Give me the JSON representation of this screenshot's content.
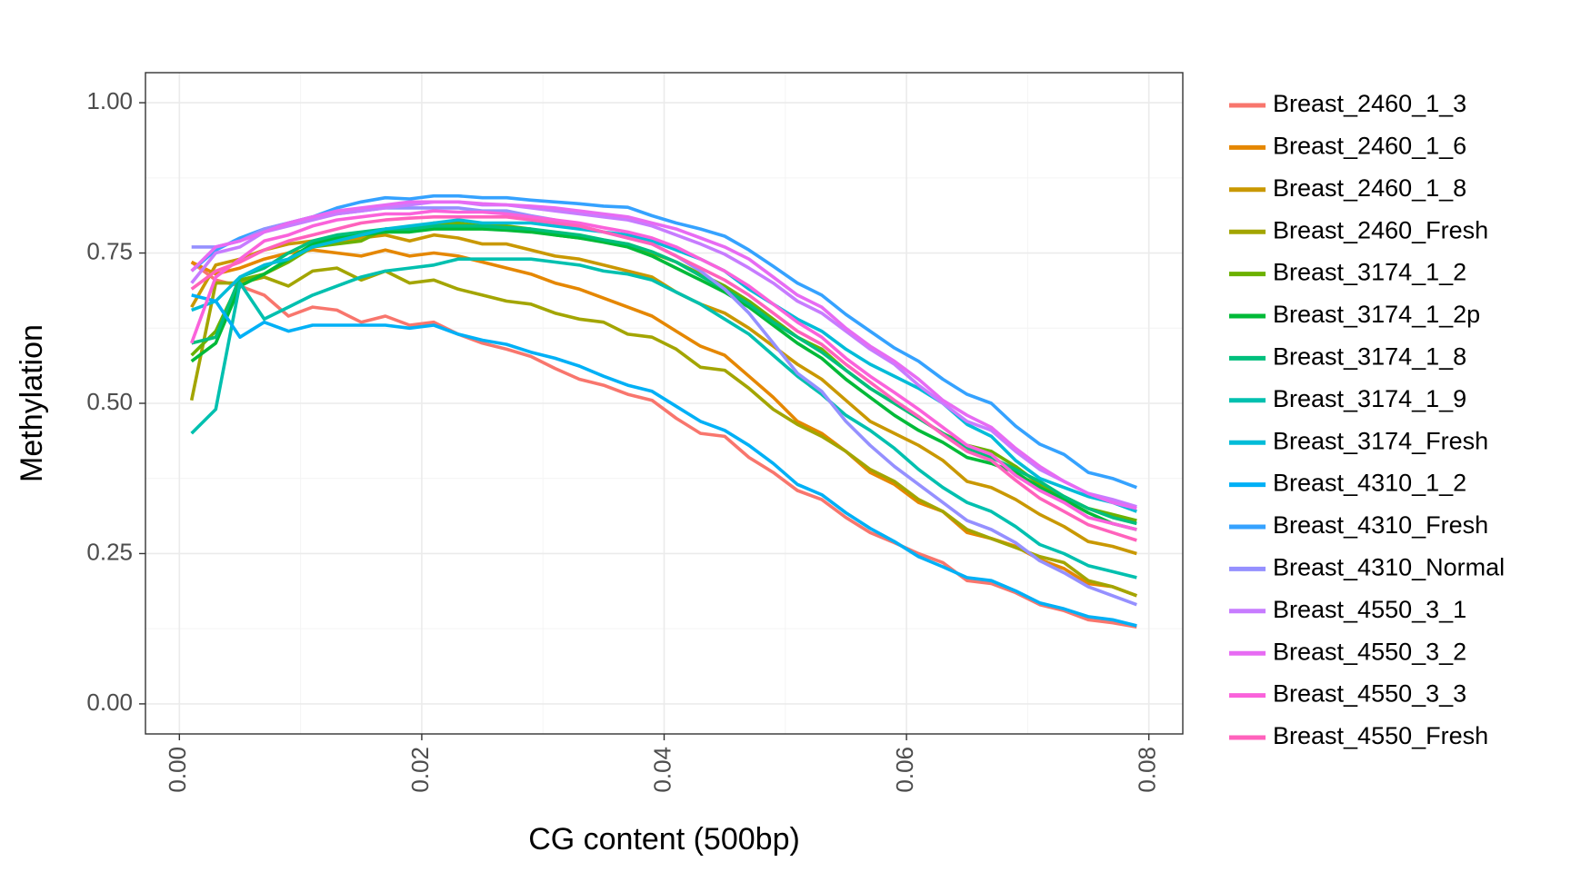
{
  "chart_data": {
    "type": "line",
    "xlabel": "CG content (500bp)",
    "ylabel": "Methylation",
    "xlim": [
      -0.0028,
      0.0828
    ],
    "ylim": [
      -0.05,
      1.05
    ],
    "x_ticks": [
      "0.00",
      "0.02",
      "0.04",
      "0.06",
      "0.08"
    ],
    "x_tick_values": [
      0,
      0.02,
      0.04,
      0.06,
      0.08
    ],
    "y_ticks": [
      "0.00",
      "0.25",
      "0.50",
      "0.75",
      "1.00"
    ],
    "y_tick_values": [
      0,
      0.25,
      0.5,
      0.75,
      1.0
    ],
    "grid": true,
    "legend_position": "right",
    "x": [
      0.001,
      0.003,
      0.005,
      0.007,
      0.009,
      0.011,
      0.013,
      0.015,
      0.017,
      0.019,
      0.021,
      0.023,
      0.025,
      0.027,
      0.029,
      0.031,
      0.033,
      0.035,
      0.037,
      0.039,
      0.041,
      0.043,
      0.045,
      0.047,
      0.049,
      0.051,
      0.053,
      0.055,
      0.057,
      0.059,
      0.061,
      0.063,
      0.065,
      0.067,
      0.069,
      0.071,
      0.073,
      0.075,
      0.077,
      0.079
    ],
    "series": [
      {
        "name": "Breast_2460_1_3",
        "color": "#F8766D",
        "values": [
          0.735,
          0.705,
          0.695,
          0.68,
          0.645,
          0.66,
          0.655,
          0.635,
          0.645,
          0.63,
          0.635,
          0.615,
          0.6,
          0.59,
          0.578,
          0.558,
          0.54,
          0.53,
          0.515,
          0.505,
          0.475,
          0.45,
          0.445,
          0.41,
          0.385,
          0.355,
          0.34,
          0.31,
          0.285,
          0.268,
          0.25,
          0.235,
          0.205,
          0.2,
          0.185,
          0.165,
          0.155,
          0.14,
          0.135,
          0.128
        ]
      },
      {
        "name": "Breast_2460_1_6",
        "color": "#E58700",
        "values": [
          0.735,
          0.715,
          0.725,
          0.74,
          0.75,
          0.755,
          0.75,
          0.745,
          0.755,
          0.745,
          0.75,
          0.745,
          0.735,
          0.725,
          0.715,
          0.7,
          0.69,
          0.675,
          0.66,
          0.645,
          0.62,
          0.595,
          0.58,
          0.545,
          0.51,
          0.47,
          0.45,
          0.42,
          0.385,
          0.365,
          0.335,
          0.32,
          0.285,
          0.275,
          0.262,
          0.24,
          0.225,
          0.2,
          0.195,
          0.18
        ]
      },
      {
        "name": "Breast_2460_1_8",
        "color": "#C99800",
        "values": [
          0.66,
          0.73,
          0.74,
          0.755,
          0.765,
          0.77,
          0.77,
          0.775,
          0.78,
          0.77,
          0.78,
          0.775,
          0.765,
          0.765,
          0.755,
          0.745,
          0.74,
          0.73,
          0.72,
          0.71,
          0.685,
          0.665,
          0.65,
          0.625,
          0.595,
          0.565,
          0.54,
          0.505,
          0.47,
          0.45,
          0.43,
          0.405,
          0.37,
          0.36,
          0.34,
          0.315,
          0.295,
          0.27,
          0.262,
          0.25
        ]
      },
      {
        "name": "Breast_2460_Fresh",
        "color": "#A3A500",
        "values": [
          0.505,
          0.7,
          0.7,
          0.71,
          0.695,
          0.72,
          0.725,
          0.705,
          0.72,
          0.7,
          0.705,
          0.69,
          0.68,
          0.67,
          0.665,
          0.65,
          0.64,
          0.635,
          0.615,
          0.61,
          0.59,
          0.56,
          0.555,
          0.525,
          0.49,
          0.465,
          0.445,
          0.42,
          0.39,
          0.37,
          0.34,
          0.32,
          0.29,
          0.275,
          0.26,
          0.245,
          0.235,
          0.205,
          0.195,
          0.18
        ]
      },
      {
        "name": "Breast_3174_1_2",
        "color": "#6BB100",
        "values": [
          0.58,
          0.62,
          0.705,
          0.715,
          0.735,
          0.76,
          0.765,
          0.77,
          0.79,
          0.79,
          0.8,
          0.8,
          0.795,
          0.795,
          0.79,
          0.78,
          0.775,
          0.77,
          0.765,
          0.75,
          0.735,
          0.715,
          0.695,
          0.67,
          0.64,
          0.61,
          0.59,
          0.555,
          0.525,
          0.5,
          0.475,
          0.45,
          0.43,
          0.42,
          0.395,
          0.365,
          0.345,
          0.325,
          0.315,
          0.305
        ]
      },
      {
        "name": "Breast_3174_1_2p",
        "color": "#00BA38",
        "values": [
          0.57,
          0.6,
          0.695,
          0.715,
          0.74,
          0.765,
          0.775,
          0.78,
          0.785,
          0.785,
          0.79,
          0.79,
          0.79,
          0.788,
          0.785,
          0.78,
          0.775,
          0.768,
          0.76,
          0.745,
          0.725,
          0.705,
          0.685,
          0.66,
          0.63,
          0.6,
          0.575,
          0.54,
          0.51,
          0.48,
          0.455,
          0.435,
          0.41,
          0.4,
          0.385,
          0.36,
          0.34,
          0.318,
          0.3,
          0.29
        ]
      },
      {
        "name": "Breast_3174_1_8",
        "color": "#00BF7D",
        "values": [
          0.6,
          0.61,
          0.71,
          0.725,
          0.75,
          0.77,
          0.78,
          0.785,
          0.79,
          0.79,
          0.795,
          0.795,
          0.795,
          0.792,
          0.79,
          0.785,
          0.78,
          0.772,
          0.765,
          0.752,
          0.735,
          0.712,
          0.69,
          0.665,
          0.635,
          0.61,
          0.585,
          0.555,
          0.525,
          0.5,
          0.475,
          0.45,
          0.425,
          0.41,
          0.39,
          0.37,
          0.345,
          0.325,
          0.31,
          0.3
        ]
      },
      {
        "name": "Breast_3174_1_9",
        "color": "#00C0AF",
        "values": [
          0.45,
          0.49,
          0.7,
          0.64,
          0.66,
          0.68,
          0.695,
          0.71,
          0.72,
          0.725,
          0.73,
          0.74,
          0.74,
          0.74,
          0.74,
          0.735,
          0.73,
          0.72,
          0.715,
          0.705,
          0.685,
          0.665,
          0.64,
          0.615,
          0.58,
          0.545,
          0.515,
          0.48,
          0.455,
          0.425,
          0.39,
          0.36,
          0.335,
          0.32,
          0.295,
          0.265,
          0.25,
          0.23,
          0.22,
          0.21
        ]
      },
      {
        "name": "Breast_3174_Fresh",
        "color": "#00BCD8",
        "values": [
          0.655,
          0.67,
          0.71,
          0.73,
          0.74,
          0.76,
          0.77,
          0.78,
          0.79,
          0.795,
          0.8,
          0.805,
          0.8,
          0.8,
          0.8,
          0.795,
          0.79,
          0.785,
          0.78,
          0.77,
          0.755,
          0.74,
          0.72,
          0.69,
          0.665,
          0.64,
          0.62,
          0.59,
          0.565,
          0.545,
          0.525,
          0.5,
          0.465,
          0.445,
          0.405,
          0.375,
          0.36,
          0.345,
          0.335,
          0.32
        ]
      },
      {
        "name": "Breast_4310_1_2",
        "color": "#00B0F6",
        "values": [
          0.68,
          0.67,
          0.61,
          0.635,
          0.62,
          0.63,
          0.63,
          0.63,
          0.63,
          0.625,
          0.63,
          0.615,
          0.605,
          0.598,
          0.585,
          0.575,
          0.562,
          0.545,
          0.53,
          0.52,
          0.495,
          0.47,
          0.455,
          0.43,
          0.4,
          0.365,
          0.348,
          0.318,
          0.292,
          0.27,
          0.245,
          0.228,
          0.21,
          0.205,
          0.188,
          0.168,
          0.158,
          0.145,
          0.14,
          0.13
        ]
      },
      {
        "name": "Breast_4310_Fresh",
        "color": "#35A2FF",
        "values": [
          0.72,
          0.755,
          0.775,
          0.79,
          0.8,
          0.81,
          0.825,
          0.835,
          0.842,
          0.84,
          0.845,
          0.845,
          0.842,
          0.842,
          0.838,
          0.835,
          0.832,
          0.828,
          0.826,
          0.812,
          0.8,
          0.79,
          0.778,
          0.755,
          0.728,
          0.7,
          0.68,
          0.648,
          0.62,
          0.592,
          0.57,
          0.54,
          0.515,
          0.5,
          0.462,
          0.432,
          0.415,
          0.385,
          0.375,
          0.36
        ]
      },
      {
        "name": "Breast_4310_Normal",
        "color": "#9590FF",
        "values": [
          0.76,
          0.76,
          0.77,
          0.79,
          0.8,
          0.81,
          0.815,
          0.82,
          0.825,
          0.825,
          0.825,
          0.825,
          0.82,
          0.82,
          0.812,
          0.805,
          0.795,
          0.785,
          0.775,
          0.765,
          0.745,
          0.72,
          0.69,
          0.65,
          0.6,
          0.55,
          0.52,
          0.47,
          0.43,
          0.395,
          0.365,
          0.335,
          0.305,
          0.29,
          0.268,
          0.238,
          0.218,
          0.195,
          0.18,
          0.165
        ]
      },
      {
        "name": "Breast_4550_3_1",
        "color": "#C77CFF",
        "values": [
          0.7,
          0.75,
          0.76,
          0.785,
          0.795,
          0.805,
          0.815,
          0.82,
          0.825,
          0.83,
          0.835,
          0.835,
          0.83,
          0.83,
          0.825,
          0.82,
          0.815,
          0.81,
          0.805,
          0.795,
          0.78,
          0.765,
          0.748,
          0.725,
          0.7,
          0.67,
          0.65,
          0.62,
          0.59,
          0.565,
          0.53,
          0.5,
          0.47,
          0.455,
          0.42,
          0.39,
          0.37,
          0.35,
          0.34,
          0.328
        ]
      },
      {
        "name": "Breast_4550_3_2",
        "color": "#E76BF3",
        "values": [
          0.72,
          0.76,
          0.77,
          0.785,
          0.8,
          0.81,
          0.82,
          0.825,
          0.83,
          0.835,
          0.835,
          0.835,
          0.832,
          0.83,
          0.828,
          0.825,
          0.82,
          0.815,
          0.81,
          0.8,
          0.79,
          0.775,
          0.76,
          0.74,
          0.71,
          0.68,
          0.66,
          0.625,
          0.595,
          0.57,
          0.54,
          0.505,
          0.48,
          0.46,
          0.425,
          0.395,
          0.37,
          0.35,
          0.335,
          0.325
        ]
      },
      {
        "name": "Breast_4550_3_3",
        "color": "#FA62DB",
        "values": [
          0.6,
          0.71,
          0.74,
          0.77,
          0.78,
          0.795,
          0.805,
          0.81,
          0.815,
          0.815,
          0.82,
          0.818,
          0.818,
          0.815,
          0.81,
          0.805,
          0.8,
          0.792,
          0.785,
          0.775,
          0.76,
          0.74,
          0.72,
          0.695,
          0.665,
          0.635,
          0.61,
          0.575,
          0.545,
          0.518,
          0.49,
          0.46,
          0.43,
          0.415,
          0.38,
          0.355,
          0.335,
          0.31,
          0.3,
          0.29
        ]
      },
      {
        "name": "Breast_4550_Fresh",
        "color": "#FF62BC",
        "values": [
          0.69,
          0.72,
          0.735,
          0.755,
          0.77,
          0.78,
          0.79,
          0.8,
          0.805,
          0.808,
          0.81,
          0.81,
          0.81,
          0.81,
          0.805,
          0.8,
          0.795,
          0.785,
          0.775,
          0.765,
          0.745,
          0.725,
          0.705,
          0.68,
          0.65,
          0.62,
          0.598,
          0.565,
          0.535,
          0.505,
          0.478,
          0.448,
          0.42,
          0.405,
          0.372,
          0.342,
          0.32,
          0.298,
          0.285,
          0.272
        ]
      }
    ]
  }
}
